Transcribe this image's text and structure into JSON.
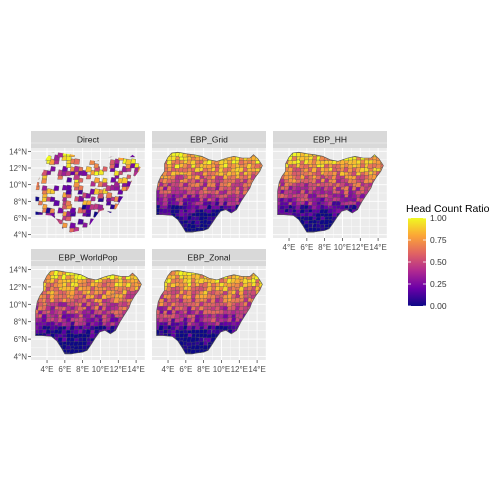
{
  "figure": {
    "panels": [
      {
        "title": "Direct",
        "coverage": "partial"
      },
      {
        "title": "EBP_Grid",
        "coverage": "full"
      },
      {
        "title": "EBP_HH",
        "coverage": "full"
      },
      {
        "title": "EBP_WorldPop",
        "coverage": "full"
      },
      {
        "title": "EBP_Zonal",
        "coverage": "full"
      }
    ],
    "y_ticks": [
      "14°N",
      "12°N",
      "10°N",
      "8°N",
      "6°N",
      "4°N"
    ],
    "x_ticks": [
      "4°E",
      "6°E",
      "8°E",
      "10°E",
      "12°E",
      "14°E"
    ],
    "x_tick_values": [
      4,
      6,
      8,
      10,
      12,
      14
    ],
    "y_tick_values": [
      14,
      12,
      10,
      8,
      6,
      4
    ],
    "legend": {
      "title": "Head Count Ratio",
      "labels": [
        "1.00",
        "0.75",
        "0.50",
        "0.25",
        "0.00"
      ],
      "values": [
        1.0,
        0.75,
        0.5,
        0.25,
        0.0
      ],
      "colors": [
        "#0d0887",
        "#6a00a8",
        "#b12a90",
        "#e16462",
        "#fca636",
        "#f0f921"
      ]
    },
    "colors": {
      "panel_bg": "#ebebeb",
      "strip_bg": "#d9d9d9",
      "grid": "#ffffff",
      "border": "#555555"
    }
  }
}
